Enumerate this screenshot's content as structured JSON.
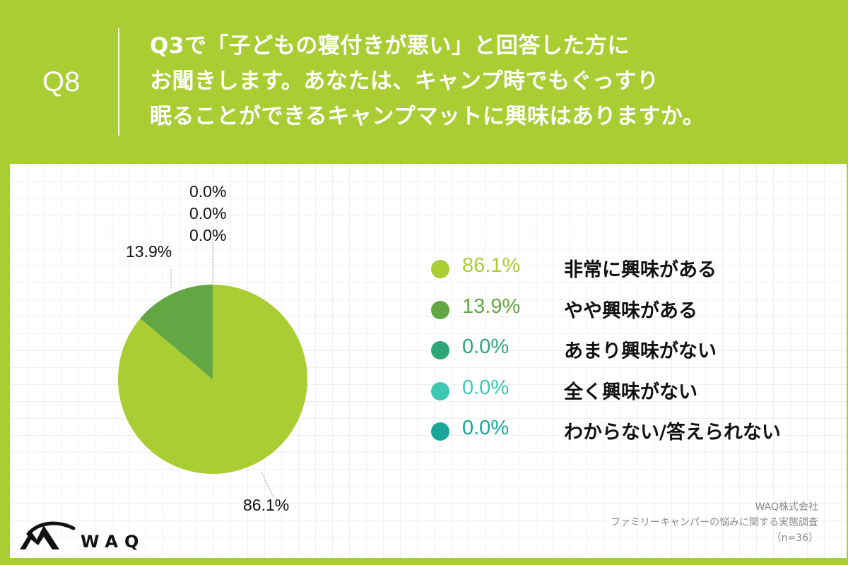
{
  "header": {
    "qnum": "Q8",
    "question": "Q3で「子どもの寝付きが悪い」と回答した方に\nお聞きします。あなたは、キャンプ時でもぐっすり\n眠ることができるキャンプマットに興味はありますか。"
  },
  "chart_data": {
    "type": "pie",
    "title": "",
    "slices": [
      {
        "label": "非常に興味がある",
        "value": 86.1,
        "pct_label": "86.1%",
        "color": "#a9cd32"
      },
      {
        "label": "やや興味がある",
        "value": 13.9,
        "pct_label": "13.9%",
        "color": "#62a744"
      },
      {
        "label": "あまり興味がない",
        "value": 0.0,
        "pct_label": "0.0%",
        "color": "#2fa67a"
      },
      {
        "label": "全く興味がない",
        "value": 0.0,
        "pct_label": "0.0%",
        "color": "#3fc7b2"
      },
      {
        "label": "わからない/答えられない",
        "value": 0.0,
        "pct_label": "0.0%",
        "color": "#1aa699"
      }
    ],
    "start_angle": "top",
    "direction": "clockwise",
    "legend_position": "right"
  },
  "brand": {
    "logo_text": "WAQ"
  },
  "source": {
    "company": "WAQ株式会社",
    "survey": "ファミリーキャンパーの悩みに関する実態調査",
    "sample": "（n=36）"
  }
}
